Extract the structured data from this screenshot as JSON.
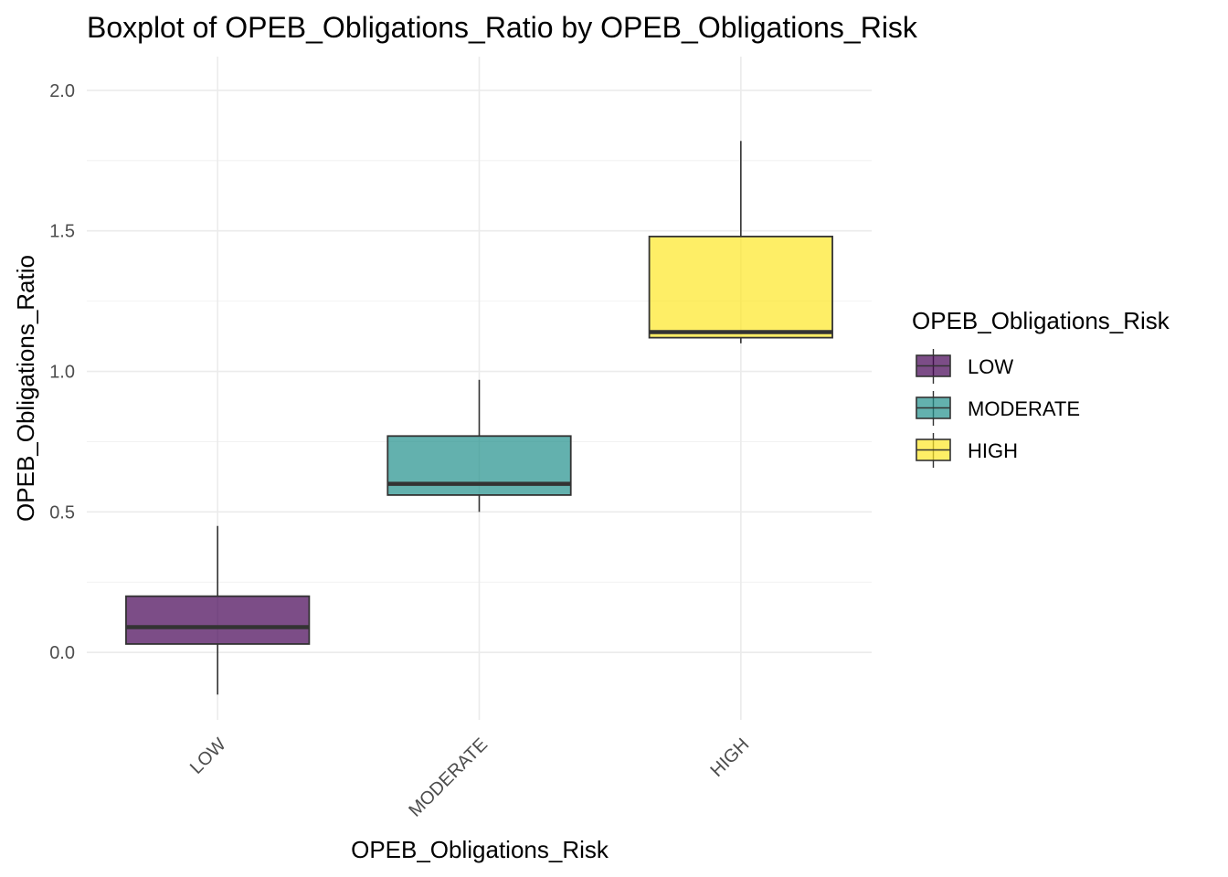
{
  "chart_data": {
    "type": "boxplot",
    "title": "Boxplot of OPEB_Obligations_Ratio by OPEB_Obligations_Risk",
    "xlabel": "OPEB_Obligations_Risk",
    "ylabel": "OPEB_Obligations_Ratio",
    "ylim": [
      -0.24,
      2.12
    ],
    "y_ticks": [
      0.0,
      0.5,
      1.0,
      1.5,
      2.0
    ],
    "y_tick_labels": [
      "0.0",
      "0.5",
      "1.0",
      "1.5",
      "2.0"
    ],
    "grid": true,
    "legend_title": "OPEB_Obligations_Risk",
    "legend_position": "right",
    "categories": [
      "LOW",
      "MODERATE",
      "HIGH"
    ],
    "boxes": [
      {
        "category": "LOW",
        "whisker_low": -0.15,
        "q1": 0.03,
        "median": 0.09,
        "q3": 0.2,
        "whisker_high": 0.45,
        "color": "#440154"
      },
      {
        "category": "MODERATE",
        "whisker_low": 0.5,
        "q1": 0.56,
        "median": 0.6,
        "q3": 0.77,
        "whisker_high": 0.97,
        "color": "#21908C"
      },
      {
        "category": "HIGH",
        "whisker_low": 1.1,
        "q1": 1.12,
        "median": 1.14,
        "q3": 1.48,
        "whisker_high": 1.82,
        "color": "#FDE725"
      }
    ]
  }
}
